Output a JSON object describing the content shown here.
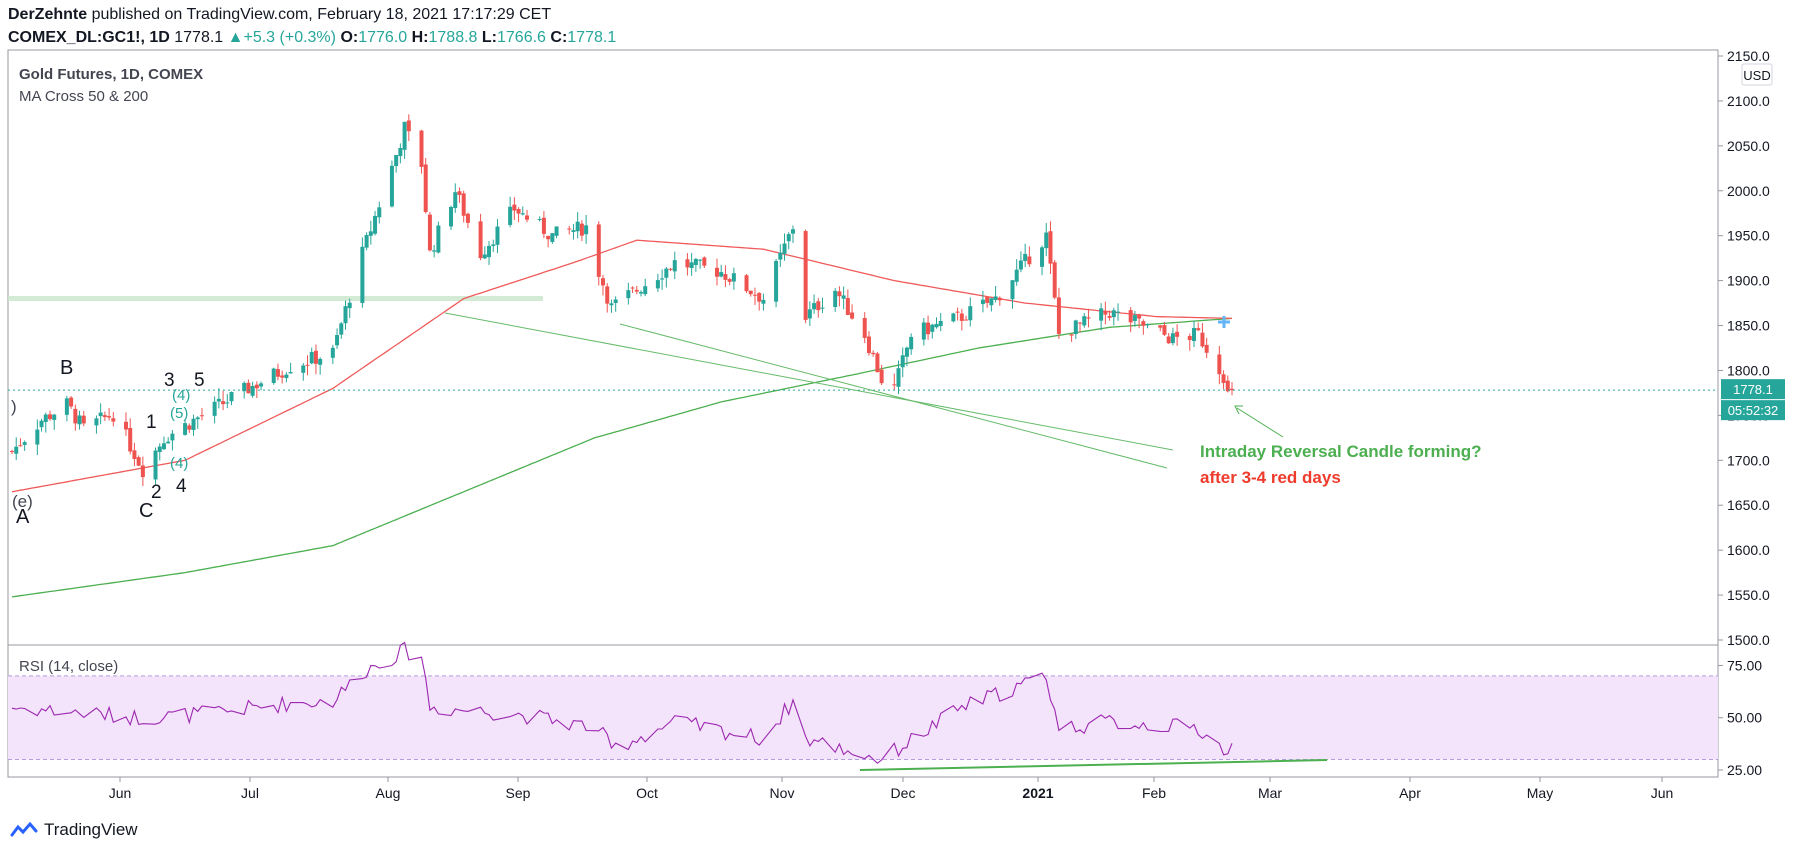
{
  "header": {
    "author": "DerZehnte",
    "published_text": " published on TradingView.com, February 18, 2021 17:17:29 CET",
    "symbol": "COMEX_DL:GC1!, 1D",
    "last": "1778.1",
    "change": "+5.3 (+0.3%)",
    "o_label": "O:",
    "o": "1776.0",
    "h_label": "H:",
    "h": "1788.8",
    "l_label": "L:",
    "l": "1766.6",
    "c_label": "C:",
    "c": "1778.1"
  },
  "legend": {
    "title": "Gold Futures, 1D, COMEX",
    "indicator": "MA Cross 50 & 200",
    "rsi": "RSI (14, close)",
    "currency": "USD"
  },
  "annotations": {
    "reversal": "Intraday Reversal Candle forming?",
    "red_days": "after 3-4 red days",
    "price_tag": "1778.1",
    "countdown": "05:52:32",
    "wave_labels": [
      "B",
      "A",
      "C",
      "1",
      "2",
      "3",
      "4",
      "5",
      "(e)",
      ")"
    ]
  },
  "footer": {
    "brand": "TradingView"
  },
  "colors": {
    "up": "#26a69a",
    "down": "#ef5350",
    "ma50": "#f05a5a",
    "ma200": "#4caf50",
    "rsi": "#9c27b0",
    "rsi_band": "#f3e3fb",
    "annotation_green": "#4caf50",
    "annotation_red": "#ef3b2c"
  },
  "chart_data": [
    {
      "type": "candlestick",
      "title": "Gold Futures, 1D, COMEX",
      "ylim": [
        1500,
        2150
      ],
      "y_ticks": [
        "2150.0",
        "2100.0",
        "2050.0",
        "2000.0",
        "1950.0",
        "1900.0",
        "1850.0",
        "1800.0",
        "1750.0",
        "1700.0",
        "1650.0",
        "1600.0",
        "1550.0",
        "1500.0"
      ],
      "x_ticks": [
        "Jun",
        "Jun",
        "Jul",
        "Aug",
        "Sep",
        "Oct",
        "Nov",
        "Dec",
        "2021",
        "Feb",
        "Mar",
        "Apr",
        "May",
        "Jun"
      ],
      "close_anchors": [
        [
          "2020-05-05",
          1710
        ],
        [
          "2020-05-12",
          1745
        ],
        [
          "2020-05-18",
          1762
        ],
        [
          "2020-05-22",
          1735
        ],
        [
          "2020-05-29",
          1752
        ],
        [
          "2020-06-05",
          1690
        ],
        [
          "2020-06-10",
          1725
        ],
        [
          "2020-06-19",
          1750
        ],
        [
          "2020-06-30",
          1780
        ],
        [
          "2020-07-10",
          1805
        ],
        [
          "2020-07-20",
          1820
        ],
        [
          "2020-07-27",
          1930
        ],
        [
          "2020-08-04",
          2040
        ],
        [
          "2020-08-06",
          2070
        ],
        [
          "2020-08-10",
          2030
        ],
        [
          "2020-08-12",
          1930
        ],
        [
          "2020-08-18",
          2000
        ],
        [
          "2020-08-24",
          1930
        ],
        [
          "2020-09-01",
          1980
        ],
        [
          "2020-09-10",
          1950
        ],
        [
          "2020-09-18",
          1960
        ],
        [
          "2020-09-21",
          1910
        ],
        [
          "2020-09-24",
          1870
        ],
        [
          "2020-09-30",
          1890
        ],
        [
          "2020-10-09",
          1920
        ],
        [
          "2020-10-20",
          1910
        ],
        [
          "2020-10-30",
          1880
        ],
        [
          "2020-11-06",
          1960
        ],
        [
          "2020-11-09",
          1860
        ],
        [
          "2020-11-16",
          1890
        ],
        [
          "2020-11-23",
          1840
        ],
        [
          "2020-11-27",
          1790
        ],
        [
          "2020-11-30",
          1780
        ],
        [
          "2020-12-04",
          1840
        ],
        [
          "2020-12-16",
          1860
        ],
        [
          "2020-12-24",
          1880
        ],
        [
          "2021-01-05",
          1950
        ],
        [
          "2021-01-08",
          1840
        ],
        [
          "2021-01-20",
          1865
        ],
        [
          "2021-01-28",
          1850
        ],
        [
          "2021-02-04",
          1835
        ],
        [
          "2021-02-10",
          1840
        ],
        [
          "2021-02-12",
          1825
        ],
        [
          "2021-02-16",
          1795
        ],
        [
          "2021-02-17",
          1773
        ],
        [
          "2021-02-18",
          1778.1
        ]
      ],
      "last_price": 1778.1
    },
    {
      "type": "line",
      "title": "MA Cross 50 & 200",
      "series": [
        {
          "values_anchors": [
            [
              "2020-05-05",
              1665
            ],
            [
              "2020-06-15",
              1700
            ],
            [
              "2020-07-20",
              1780
            ],
            [
              "2020-08-20",
              1880
            ],
            [
              "2020-09-15",
              1920
            ],
            [
              "2020-09-30",
              1945
            ],
            [
              "2020-10-30",
              1935
            ],
            [
              "2020-11-30",
              1900
            ],
            [
              "2020-12-31",
              1875
            ],
            [
              "2021-01-31",
              1860
            ],
            [
              "2021-02-18",
              1858
            ]
          ]
        },
        {
          "values_anchors": [
            [
              "2020-05-05",
              1548
            ],
            [
              "2020-06-15",
              1575
            ],
            [
              "2020-07-20",
              1605
            ],
            [
              "2020-08-20",
              1665
            ],
            [
              "2020-09-20",
              1725
            ],
            [
              "2020-10-20",
              1765
            ],
            [
              "2020-11-20",
              1795
            ],
            [
              "2020-12-20",
              1825
            ],
            [
              "2021-01-20",
              1848
            ],
            [
              "2021-02-18",
              1858
            ]
          ]
        }
      ]
    },
    {
      "type": "line",
      "title": "RSI (14, close)",
      "ylim": [
        25,
        80
      ],
      "y_ticks": [
        "75.00",
        "50.00",
        "25.00"
      ],
      "bands": [
        30,
        70
      ],
      "values_anchors": [
        [
          "2020-05-05",
          55
        ],
        [
          "2020-06-05",
          50
        ],
        [
          "2020-06-20",
          52
        ],
        [
          "2020-07-10",
          57
        ],
        [
          "2020-07-20",
          58
        ],
        [
          "2020-07-27",
          72
        ],
        [
          "2020-08-04",
          80
        ],
        [
          "2020-08-06",
          82
        ],
        [
          "2020-08-10",
          80
        ],
        [
          "2020-08-12",
          55
        ],
        [
          "2020-09-01",
          52
        ],
        [
          "2020-09-21",
          45
        ],
        [
          "2020-09-24",
          35
        ],
        [
          "2020-10-09",
          48
        ],
        [
          "2020-10-30",
          40
        ],
        [
          "2020-11-06",
          58
        ],
        [
          "2020-11-09",
          40
        ],
        [
          "2020-11-27",
          30
        ],
        [
          "2020-12-16",
          55
        ],
        [
          "2021-01-05",
          70
        ],
        [
          "2021-01-08",
          45
        ],
        [
          "2021-01-20",
          48
        ],
        [
          "2021-02-10",
          45
        ],
        [
          "2021-02-17",
          33
        ],
        [
          "2021-02-18",
          36
        ]
      ]
    }
  ]
}
